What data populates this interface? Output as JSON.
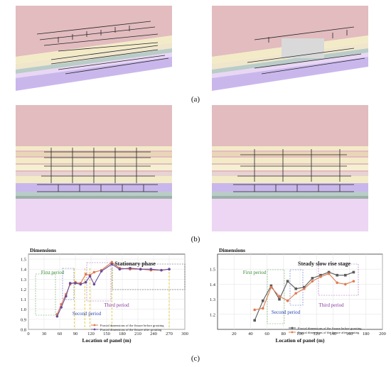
{
  "captions": {
    "a": "(a)",
    "b": "(b)",
    "c": "(c)"
  },
  "colors": {
    "sky": "#e2bcbf",
    "pale_band": "#f3ebc8",
    "lilac": "#e6cdf2",
    "purple": "#c9b7ec",
    "dark_line": "#262626"
  },
  "chart_data": [
    {
      "type": "line",
      "title": "Dimensions",
      "xlabel": "Location of panel (m)",
      "ylabel": "",
      "xlim": [
        0,
        300
      ],
      "ylim": [
        0.8,
        1.55
      ],
      "xticks": [
        0,
        30,
        60,
        90,
        120,
        150,
        180,
        210,
        240,
        270,
        300
      ],
      "yticks": [
        0.8,
        0.9,
        1.0,
        1.1,
        1.2,
        1.3,
        1.4,
        1.5
      ],
      "grid": true,
      "legend_position": "lower-right",
      "series": [
        {
          "name": "Fractal dimensions of the fissure before grouting",
          "color": "#e07a4f",
          "x": [
            55,
            63,
            72,
            80,
            90,
            100,
            110,
            118,
            126,
            140,
            160,
            175,
            195,
            215,
            235,
            255,
            270
          ],
          "y": [
            0.95,
            1.05,
            1.15,
            1.25,
            1.27,
            1.26,
            1.35,
            1.34,
            1.37,
            1.39,
            1.47,
            1.41,
            1.4,
            1.4,
            1.39,
            1.39,
            1.4
          ]
        },
        {
          "name": "Fractal dimensions of the fissure after grouting",
          "color": "#6a4b9c",
          "x": [
            55,
            63,
            72,
            80,
            90,
            100,
            110,
            118,
            126,
            140,
            160,
            175,
            195,
            215,
            235,
            255,
            270
          ],
          "y": [
            0.93,
            1.02,
            1.13,
            1.26,
            1.26,
            1.25,
            1.27,
            1.33,
            1.25,
            1.38,
            1.45,
            1.4,
            1.41,
            1.4,
            1.4,
            1.39,
            1.4
          ]
        }
      ],
      "annotations": [
        {
          "text": "First period",
          "color": "#3a8d3a"
        },
        {
          "text": "Second period",
          "color": "#2a48b3"
        },
        {
          "text": "Third period",
          "color": "#8a3aa0"
        },
        {
          "text": "Stationary phase",
          "color": "#222222"
        }
      ],
      "reference_x": [
        88,
        108,
        118,
        160,
        270
      ]
    },
    {
      "type": "line",
      "title": "Dimensions",
      "xlabel": "Location of panel (m)",
      "ylabel": "",
      "xlim": [
        0,
        200
      ],
      "ylim": [
        1.1,
        1.6
      ],
      "xticks": [
        20,
        40,
        60,
        80,
        100,
        120,
        140,
        160,
        180,
        200
      ],
      "yticks": [
        1.2,
        1.3,
        1.4,
        1.5
      ],
      "grid": true,
      "legend_position": "lower-right",
      "series": [
        {
          "name": "Fractal dimensions of the fissure before grouting",
          "color": "#5a5a5a",
          "x": [
            45,
            55,
            65,
            75,
            85,
            95,
            105,
            115,
            125,
            135,
            145,
            155,
            165
          ],
          "y": [
            1.16,
            1.29,
            1.39,
            1.3,
            1.42,
            1.37,
            1.38,
            1.44,
            1.46,
            1.48,
            1.46,
            1.46,
            1.48
          ]
        },
        {
          "name": "Fractal dimensions of the fissure after grouting",
          "color": "#e07a4f",
          "x": [
            45,
            55,
            65,
            75,
            85,
            95,
            105,
            115,
            125,
            135,
            145,
            155,
            165
          ],
          "y": [
            1.23,
            1.24,
            1.38,
            1.32,
            1.29,
            1.34,
            1.37,
            1.42,
            1.45,
            1.47,
            1.41,
            1.4,
            1.42
          ]
        }
      ],
      "annotations": [
        {
          "text": "First period",
          "color": "#3a8d3a"
        },
        {
          "text": "Second period",
          "color": "#2a48b3"
        },
        {
          "text": "Third period",
          "color": "#8a3aa0"
        },
        {
          "text": "Steady slow rise stage",
          "color": "#222222"
        }
      ]
    }
  ]
}
